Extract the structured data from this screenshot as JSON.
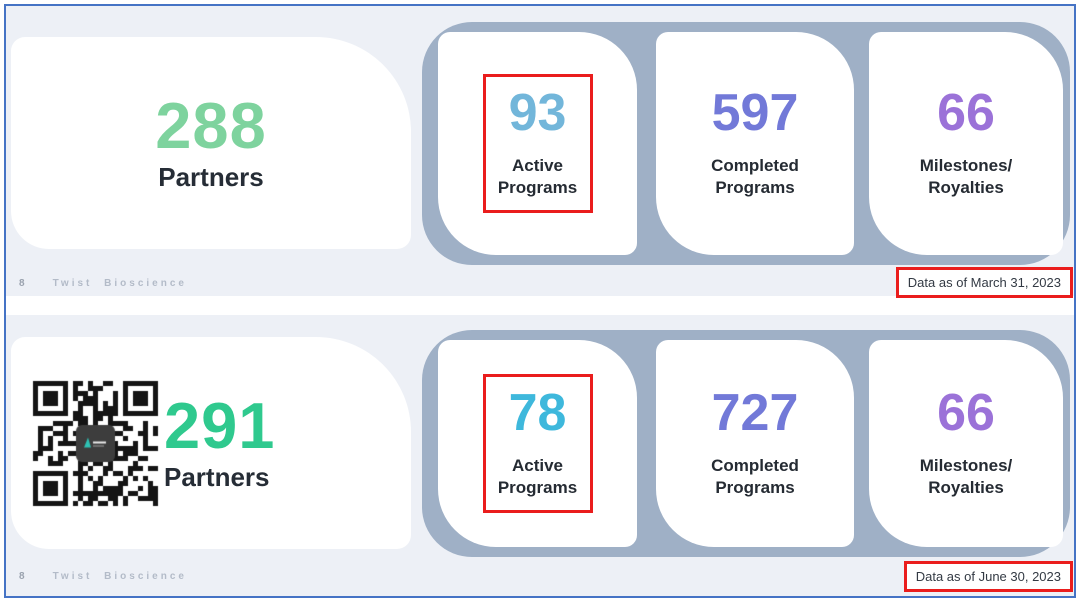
{
  "colors": {
    "frame_border_blue": "#4573c5",
    "slide_background": "#edf0f6",
    "stats_panel_gray": "#9fb0c6",
    "annotation_red": "#ea1d1d",
    "heading_dark": "#262d36"
  },
  "slides": [
    {
      "id": "march",
      "page_number": "8",
      "brand": "Twist Bioscience",
      "partners": {
        "value": "288",
        "label": "Partners",
        "color": "#7ed39e"
      },
      "stats": [
        {
          "value": "93",
          "lines": [
            "Active",
            "Programs"
          ],
          "color": "#72b6da",
          "highlighted": true
        },
        {
          "value": "597",
          "lines": [
            "Completed",
            "Programs"
          ],
          "color": "#7279d8",
          "highlighted": false
        },
        {
          "value": "66",
          "lines": [
            "Milestones/",
            "Royalties"
          ],
          "color": "#9b72d8",
          "highlighted": false
        }
      ],
      "data_as_of": "Data as of March 31, 2023"
    },
    {
      "id": "june",
      "page_number": "8",
      "brand": "Twist Bioscience",
      "partners": {
        "value": "291",
        "label": "Partners",
        "color": "#2fc98e"
      },
      "qr_icon": "qr-code-with-twist-logo",
      "stats": [
        {
          "value": "78",
          "lines": [
            "Active",
            "Programs"
          ],
          "color": "#3eb8dc",
          "highlighted": true
        },
        {
          "value": "727",
          "lines": [
            "Completed",
            "Programs"
          ],
          "color": "#7279d8",
          "highlighted": false
        },
        {
          "value": "66",
          "lines": [
            "Milestones/",
            "Royalties"
          ],
          "color": "#9b72d8",
          "highlighted": false
        }
      ],
      "data_as_of": "Data as of June 30, 2023"
    }
  ]
}
